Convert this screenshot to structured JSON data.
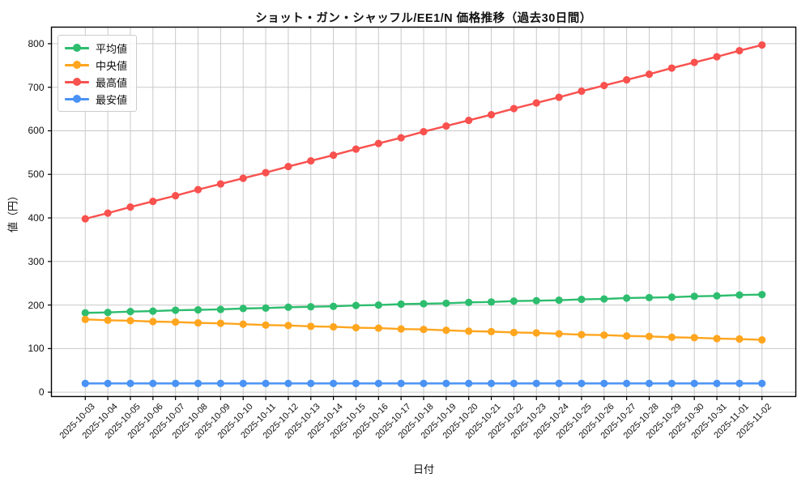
{
  "chart_data": {
    "type": "line",
    "title": "ショット・ガン・シャッフル/EE1/N 価格推移（過去30日間）",
    "xlabel": "日付",
    "ylabel": "値（円）",
    "legend_position": "upper left",
    "grid": true,
    "ylim": [
      -10,
      838
    ],
    "yticks": [
      0,
      100,
      200,
      300,
      400,
      500,
      600,
      700,
      800
    ],
    "x": [
      "2025-10-03",
      "2025-10-04",
      "2025-10-05",
      "2025-10-06",
      "2025-10-07",
      "2025-10-08",
      "2025-10-09",
      "2025-10-10",
      "2025-10-11",
      "2025-10-12",
      "2025-10-13",
      "2025-10-14",
      "2025-10-15",
      "2025-10-16",
      "2025-10-17",
      "2025-10-18",
      "2025-10-19",
      "2025-10-20",
      "2025-10-21",
      "2025-10-22",
      "2025-10-23",
      "2025-10-24",
      "2025-10-25",
      "2025-10-26",
      "2025-10-27",
      "2025-10-28",
      "2025-10-29",
      "2025-10-30",
      "2025-10-31",
      "2025-11-01",
      "2025-11-02"
    ],
    "series": [
      {
        "name": "平均値",
        "color": "#2dbd6e",
        "values": [
          182,
          183,
          185,
          186,
          188,
          189,
          190,
          192,
          193,
          195,
          196,
          197,
          199,
          200,
          202,
          203,
          204,
          206,
          207,
          209,
          210,
          211,
          213,
          214,
          216,
          217,
          218,
          220,
          221,
          223,
          224
        ]
      },
      {
        "name": "中央値",
        "color": "#ffa51e",
        "values": [
          167,
          165,
          164,
          162,
          161,
          159,
          158,
          156,
          154,
          153,
          151,
          150,
          148,
          147,
          145,
          144,
          142,
          140,
          139,
          137,
          136,
          134,
          132,
          131,
          129,
          128,
          126,
          125,
          123,
          122,
          120
        ]
      },
      {
        "name": "最高値",
        "color": "#f8514e",
        "values": [
          398,
          411,
          425,
          438,
          451,
          465,
          478,
          491,
          504,
          518,
          531,
          544,
          558,
          571,
          584,
          598,
          611,
          624,
          637,
          651,
          664,
          677,
          691,
          704,
          717,
          730,
          744,
          757,
          770,
          784,
          797
        ]
      },
      {
        "name": "最安値",
        "color": "#4a93f5",
        "values": [
          20,
          20,
          20,
          20,
          20,
          20,
          20,
          20,
          20,
          20,
          20,
          20,
          20,
          20,
          20,
          20,
          20,
          20,
          20,
          20,
          20,
          20,
          20,
          20,
          20,
          20,
          20,
          20,
          20,
          20,
          20
        ]
      }
    ]
  }
}
